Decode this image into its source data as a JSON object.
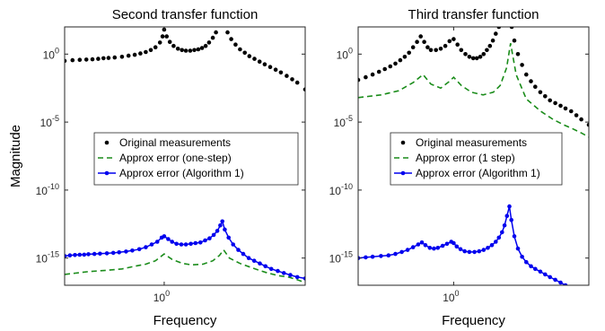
{
  "charts": [
    {
      "title": "Second transfer function",
      "xlabel": "Frequency",
      "ylabel": "Magnitude",
      "xscale": "log",
      "yscale": "log",
      "xlim": [
        0.3,
        5.5
      ],
      "ylim": [
        1e-17,
        100.0
      ],
      "x_ticks": [
        {
          "value": 1,
          "base": "10",
          "exp": "0"
        }
      ],
      "y_ticks": [
        {
          "value": 1,
          "base": "10",
          "exp": "0"
        },
        {
          "value": 1e-05,
          "base": "10",
          "exp": "-5"
        },
        {
          "value": 1e-10,
          "base": "10",
          "exp": "-10"
        },
        {
          "value": 1e-15,
          "base": "10",
          "exp": "-15"
        }
      ],
      "legend": {
        "placement": "center",
        "entries": [
          {
            "label": "Original measurements",
            "series": 0
          },
          {
            "label": "Approx error (one-step)",
            "series": 1
          },
          {
            "label": "Approx error (Algorithm 1)",
            "series": 2
          }
        ]
      },
      "series": [
        {
          "color": "#000000",
          "style": "markers",
          "x": [
            0.3,
            0.33,
            0.36,
            0.39,
            0.42,
            0.45,
            0.48,
            0.51,
            0.55,
            0.6,
            0.65,
            0.7,
            0.75,
            0.8,
            0.85,
            0.9,
            0.95,
            0.98,
            1.0,
            1.03,
            1.07,
            1.12,
            1.18,
            1.24,
            1.3,
            1.37,
            1.44,
            1.51,
            1.58,
            1.65,
            1.72,
            1.8,
            1.87,
            1.93,
            1.98,
            2.02,
            2.07,
            2.15,
            2.25,
            2.37,
            2.5,
            2.65,
            2.8,
            2.98,
            3.17,
            3.37,
            3.6,
            3.85,
            4.1,
            4.4,
            4.7,
            5.0,
            5.5
          ],
          "y": [
            -0.5,
            -0.45,
            -0.42,
            -0.4,
            -0.38,
            -0.35,
            -0.3,
            -0.28,
            -0.25,
            -0.2,
            -0.12,
            -0.05,
            0.05,
            0.15,
            0.3,
            0.5,
            0.85,
            1.3,
            1.8,
            1.3,
            0.9,
            0.6,
            0.4,
            0.3,
            0.25,
            0.25,
            0.3,
            0.35,
            0.45,
            0.6,
            0.85,
            1.2,
            1.6,
            2.2,
            2.7,
            3.3,
            2.2,
            1.6,
            1.1,
            0.7,
            0.35,
            0.1,
            -0.15,
            -0.35,
            -0.55,
            -0.75,
            -0.95,
            -1.15,
            -1.35,
            -1.6,
            -1.85,
            -2.1,
            -2.6
          ]
        },
        {
          "color": "#1a8c1a",
          "style": "dashed",
          "x": [
            0.3,
            0.4,
            0.5,
            0.6,
            0.7,
            0.8,
            0.9,
            1.0,
            1.1,
            1.25,
            1.4,
            1.6,
            1.8,
            1.95,
            2.05,
            2.2,
            2.5,
            3.0,
            3.5,
            4.0,
            4.5,
            5.0,
            5.5
          ],
          "y": [
            -16.2,
            -16.0,
            -15.9,
            -15.8,
            -15.6,
            -15.45,
            -15.2,
            -14.7,
            -15.1,
            -15.4,
            -15.5,
            -15.45,
            -15.2,
            -14.8,
            -14.4,
            -15.0,
            -15.4,
            -15.8,
            -16.1,
            -16.3,
            -16.4,
            -16.6,
            -16.8
          ]
        },
        {
          "color": "#0000ee",
          "style": "line-markers",
          "x": [
            0.3,
            0.32,
            0.34,
            0.36,
            0.38,
            0.4,
            0.43,
            0.46,
            0.5,
            0.54,
            0.58,
            0.63,
            0.68,
            0.74,
            0.8,
            0.86,
            0.92,
            0.97,
            1.0,
            1.05,
            1.1,
            1.16,
            1.23,
            1.3,
            1.38,
            1.46,
            1.55,
            1.64,
            1.73,
            1.82,
            1.9,
            1.97,
            2.02,
            2.08,
            2.18,
            2.3,
            2.45,
            2.6,
            2.78,
            2.97,
            3.18,
            3.4,
            3.65,
            3.95,
            4.25,
            4.6,
            5.0,
            5.5
          ],
          "y": [
            -14.85,
            -14.8,
            -14.78,
            -14.76,
            -14.75,
            -14.72,
            -14.7,
            -14.68,
            -14.65,
            -14.62,
            -14.58,
            -14.52,
            -14.45,
            -14.35,
            -14.2,
            -14.0,
            -13.8,
            -13.5,
            -13.4,
            -13.6,
            -13.8,
            -13.95,
            -14.0,
            -14.0,
            -13.95,
            -13.9,
            -13.85,
            -13.7,
            -13.55,
            -13.3,
            -13.0,
            -12.6,
            -12.3,
            -12.9,
            -13.5,
            -14.0,
            -14.4,
            -14.7,
            -15.0,
            -15.2,
            -15.4,
            -15.6,
            -15.8,
            -15.95,
            -16.1,
            -16.25,
            -16.4,
            -16.5
          ]
        }
      ]
    },
    {
      "title": "Third transfer function",
      "xlabel": "Frequency",
      "ylabel": "",
      "xscale": "log",
      "yscale": "log",
      "xlim": [
        0.3,
        5.5
      ],
      "ylim": [
        1e-17,
        100.0
      ],
      "x_ticks": [
        {
          "value": 1,
          "base": "10",
          "exp": "0"
        }
      ],
      "y_ticks": [
        {
          "value": 1,
          "base": "10",
          "exp": "0"
        },
        {
          "value": 1e-05,
          "base": "10",
          "exp": "-5"
        },
        {
          "value": 1e-10,
          "base": "10",
          "exp": "-10"
        },
        {
          "value": 1e-15,
          "base": "10",
          "exp": "-15"
        }
      ],
      "legend": {
        "placement": "center",
        "entries": [
          {
            "label": "Original measurements",
            "series": 0
          },
          {
            "label": "Approx error (1 step)",
            "series": 1
          },
          {
            "label": "Approx error (Algorithm 1)",
            "series": 2
          }
        ]
      },
      "series": [
        {
          "color": "#000000",
          "style": "markers",
          "x": [
            0.3,
            0.33,
            0.36,
            0.39,
            0.42,
            0.45,
            0.48,
            0.51,
            0.54,
            0.57,
            0.6,
            0.63,
            0.66,
            0.69,
            0.72,
            0.75,
            0.8,
            0.85,
            0.9,
            0.95,
            1.0,
            1.05,
            1.1,
            1.16,
            1.22,
            1.28,
            1.34,
            1.4,
            1.46,
            1.52,
            1.58,
            1.64,
            1.7,
            1.77,
            1.84,
            1.91,
            1.97,
            2.02,
            2.08,
            2.15,
            2.25,
            2.37,
            2.5,
            2.65,
            2.8,
            2.98,
            3.17,
            3.37,
            3.6,
            3.85,
            4.1,
            4.4,
            4.7,
            5.0,
            5.5
          ],
          "y": [
            -1.9,
            -1.7,
            -1.5,
            -1.3,
            -1.1,
            -0.9,
            -0.7,
            -0.45,
            -0.2,
            0.1,
            0.5,
            0.9,
            1.3,
            0.9,
            0.5,
            0.3,
            0.3,
            0.4,
            0.6,
            0.95,
            1.1,
            0.7,
            0.3,
            0.0,
            -0.2,
            -0.3,
            -0.3,
            -0.2,
            0.0,
            0.3,
            0.6,
            1.0,
            1.5,
            2.0,
            2.6,
            3.4,
            4.7,
            3.5,
            2.0,
            1.0,
            0.0,
            -0.8,
            -1.5,
            -2.0,
            -2.4,
            -2.8,
            -3.1,
            -3.4,
            -3.6,
            -3.8,
            -4.0,
            -4.2,
            -4.5,
            -4.8,
            -5.2
          ]
        },
        {
          "color": "#1a8c1a",
          "style": "dashed",
          "x": [
            0.3,
            0.4,
            0.5,
            0.6,
            0.68,
            0.75,
            0.85,
            0.95,
            1.0,
            1.1,
            1.25,
            1.45,
            1.65,
            1.8,
            1.95,
            2.05,
            2.2,
            2.5,
            3.0,
            3.5,
            4.0,
            4.5,
            5.0,
            5.5
          ],
          "y": [
            -3.2,
            -3.0,
            -2.7,
            -2.1,
            -1.5,
            -2.2,
            -2.5,
            -2.0,
            -1.7,
            -2.3,
            -2.8,
            -3.0,
            -2.8,
            -2.3,
            -1.0,
            0.8,
            -1.5,
            -3.3,
            -4.2,
            -4.8,
            -5.2,
            -5.5,
            -5.8,
            -6.1
          ]
        },
        {
          "color": "#0000ee",
          "style": "line-markers",
          "x": [
            0.3,
            0.33,
            0.36,
            0.4,
            0.44,
            0.48,
            0.52,
            0.56,
            0.6,
            0.64,
            0.67,
            0.7,
            0.74,
            0.78,
            0.82,
            0.87,
            0.92,
            0.97,
            1.0,
            1.04,
            1.09,
            1.15,
            1.22,
            1.3,
            1.38,
            1.46,
            1.54,
            1.62,
            1.7,
            1.77,
            1.84,
            1.9,
            1.96,
            2.02,
            2.07,
            2.15,
            2.25,
            2.37,
            2.5,
            2.65,
            2.8,
            2.98,
            3.17,
            3.37,
            3.6,
            3.85,
            4.1,
            4.4,
            4.7,
            5.0,
            5.5
          ],
          "y": [
            -15.0,
            -14.95,
            -14.9,
            -14.85,
            -14.8,
            -14.7,
            -14.55,
            -14.4,
            -14.2,
            -14.0,
            -13.85,
            -14.05,
            -14.25,
            -14.3,
            -14.25,
            -14.1,
            -13.95,
            -13.8,
            -13.9,
            -14.15,
            -14.35,
            -14.5,
            -14.55,
            -14.55,
            -14.5,
            -14.4,
            -14.25,
            -14.05,
            -13.8,
            -13.5,
            -13.1,
            -12.6,
            -11.9,
            -11.2,
            -12.2,
            -13.4,
            -14.3,
            -14.9,
            -15.3,
            -15.6,
            -15.8,
            -16.0,
            -16.2,
            -16.4,
            -16.6,
            -16.8,
            -17.0,
            -17.2,
            -17.4,
            -17.6,
            -17.9
          ]
        }
      ]
    }
  ]
}
